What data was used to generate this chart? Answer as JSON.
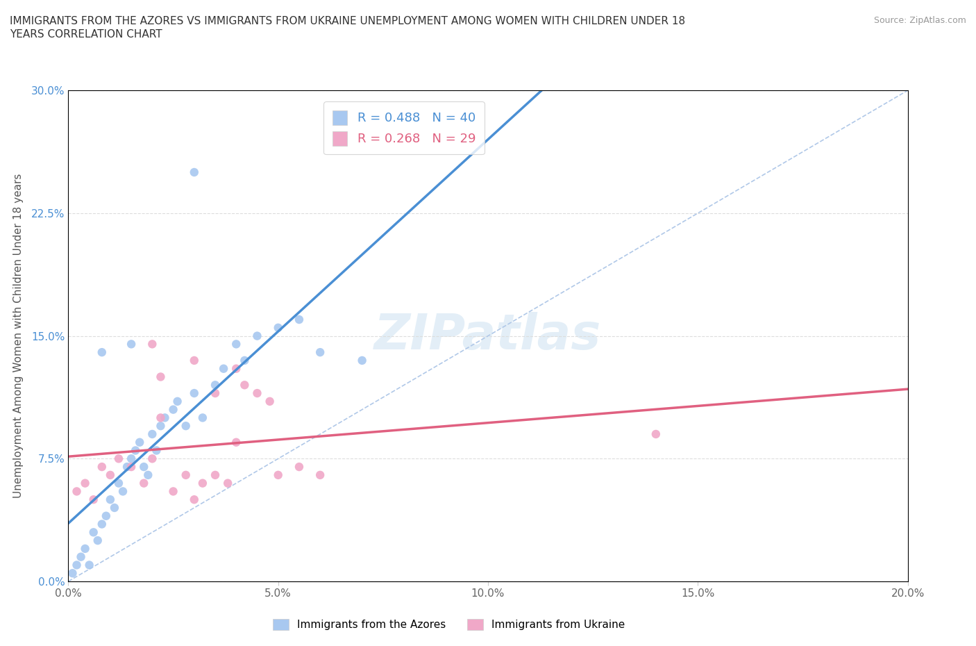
{
  "title_line1": "IMMIGRANTS FROM THE AZORES VS IMMIGRANTS FROM UKRAINE UNEMPLOYMENT AMONG WOMEN WITH CHILDREN UNDER 18",
  "title_line2": "YEARS CORRELATION CHART",
  "source": "Source: ZipAtlas.com",
  "xlabel_vals": [
    0.0,
    5.0,
    10.0,
    15.0,
    20.0
  ],
  "ylabel_vals": [
    0.0,
    7.5,
    15.0,
    22.5,
    30.0
  ],
  "xlim": [
    0.0,
    20.0
  ],
  "ylim": [
    0.0,
    30.0
  ],
  "ylabel": "Unemployment Among Women with Children Under 18 years",
  "legend1_label": "R = 0.488   N = 40",
  "legend2_label": "R = 0.268   N = 29",
  "legend1_color": "#a8c8f0",
  "legend2_color": "#f0a8c8",
  "trendline1_color": "#4a8fd4",
  "trendline2_color": "#e06080",
  "diag_color": "#b0c8e8",
  "watermark": "ZIPatlas",
  "tick_color_right": "#4a8fd4",
  "scatter_azores_x": [
    0.1,
    0.2,
    0.3,
    0.4,
    0.5,
    0.6,
    0.7,
    0.8,
    0.9,
    1.0,
    1.1,
    1.2,
    1.3,
    1.4,
    1.5,
    1.6,
    1.7,
    1.8,
    1.9,
    2.0,
    2.1,
    2.2,
    2.3,
    2.5,
    2.6,
    2.8,
    3.0,
    3.2,
    3.5,
    3.7,
    4.0,
    4.2,
    4.5,
    5.0,
    5.5,
    6.0,
    7.0,
    3.0,
    1.5,
    0.8
  ],
  "scatter_azores_y": [
    0.5,
    1.0,
    1.5,
    2.0,
    1.0,
    3.0,
    2.5,
    3.5,
    4.0,
    5.0,
    4.5,
    6.0,
    5.5,
    7.0,
    7.5,
    8.0,
    8.5,
    7.0,
    6.5,
    9.0,
    8.0,
    9.5,
    10.0,
    10.5,
    11.0,
    9.5,
    11.5,
    10.0,
    12.0,
    13.0,
    14.5,
    13.5,
    15.0,
    15.5,
    16.0,
    14.0,
    13.5,
    25.0,
    14.5,
    14.0
  ],
  "scatter_ukraine_x": [
    0.2,
    0.4,
    0.6,
    0.8,
    1.0,
    1.2,
    1.5,
    1.8,
    2.0,
    2.2,
    2.5,
    2.8,
    3.0,
    3.2,
    3.5,
    3.8,
    4.0,
    4.2,
    4.5,
    5.0,
    5.5,
    6.0,
    3.0,
    2.0,
    4.8,
    2.2,
    3.5,
    4.0,
    14.0
  ],
  "scatter_ukraine_y": [
    5.5,
    6.0,
    5.0,
    7.0,
    6.5,
    7.5,
    7.0,
    6.0,
    7.5,
    12.5,
    5.5,
    6.5,
    5.0,
    6.0,
    6.5,
    6.0,
    13.0,
    12.0,
    11.5,
    6.5,
    7.0,
    6.5,
    13.5,
    14.5,
    11.0,
    10.0,
    11.5,
    8.5,
    9.0
  ]
}
